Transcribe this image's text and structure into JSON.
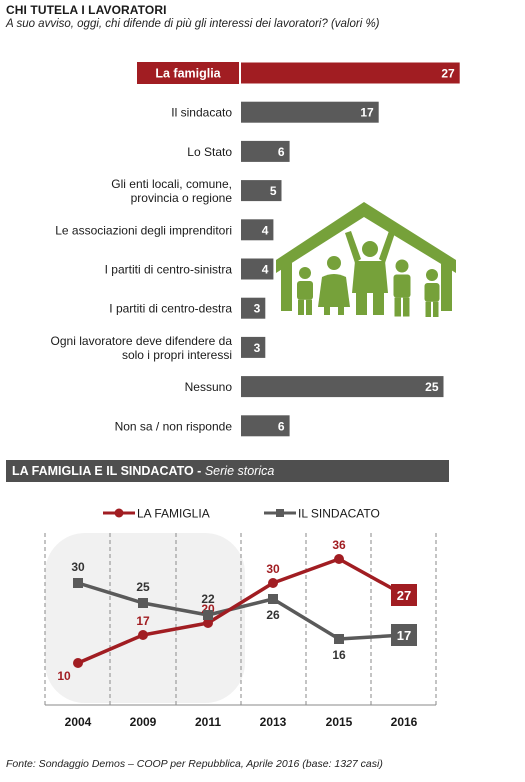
{
  "header": {
    "title": "CHI TUTELA I LAVORATORI",
    "subtitle": "A suo avviso, oggi, chi difende di più gli interessi dei lavoratori? (valori %)"
  },
  "section2": {
    "title": "LA FAMIGLIA E IL SINDACATO -",
    "subtitle": "Serie storica"
  },
  "footer": {
    "source": "Fonte: Sondaggio Demos – COOP per Repubblica, Aprile 2016 (base: 1327 casi)"
  },
  "colors": {
    "highlight": "#a11d22",
    "bar": "#5a5a5a",
    "icon_green": "#76a13a",
    "famiglia": "#a11d22",
    "sindacato": "#5a5a5a"
  },
  "chart_data": [
    {
      "type": "bar",
      "orientation": "horizontal",
      "categories": [
        [
          "La famiglia"
        ],
        [
          "Il sindacato"
        ],
        [
          "Lo Stato"
        ],
        [
          "Gli enti locali, comune,",
          "provincia o regione"
        ],
        [
          "Le associazioni degli imprenditori"
        ],
        [
          "I partiti di centro-sinistra"
        ],
        [
          "I partiti di centro-destra"
        ],
        [
          "Ogni lavoratore deve difendere da",
          "solo i propri interessi"
        ],
        [
          "Nessuno"
        ],
        [
          "Non sa / non risponde"
        ]
      ],
      "values": [
        27,
        17,
        6,
        5,
        4,
        4,
        3,
        3,
        25,
        6
      ],
      "highlight_index": 0,
      "icon": "family-house-icon"
    },
    {
      "type": "line",
      "x": [
        "2004",
        "2009",
        "2011",
        "2013",
        "2015",
        "2016"
      ],
      "series": [
        {
          "name": "LA FAMIGLIA",
          "values": [
            10,
            17,
            20,
            30,
            36,
            27
          ]
        },
        {
          "name": "IL SINDACATO",
          "values": [
            30,
            25,
            22,
            26,
            16,
            17
          ]
        }
      ],
      "ylim": [
        5,
        42
      ],
      "grid": "vertical dashed",
      "legend": "top"
    }
  ]
}
